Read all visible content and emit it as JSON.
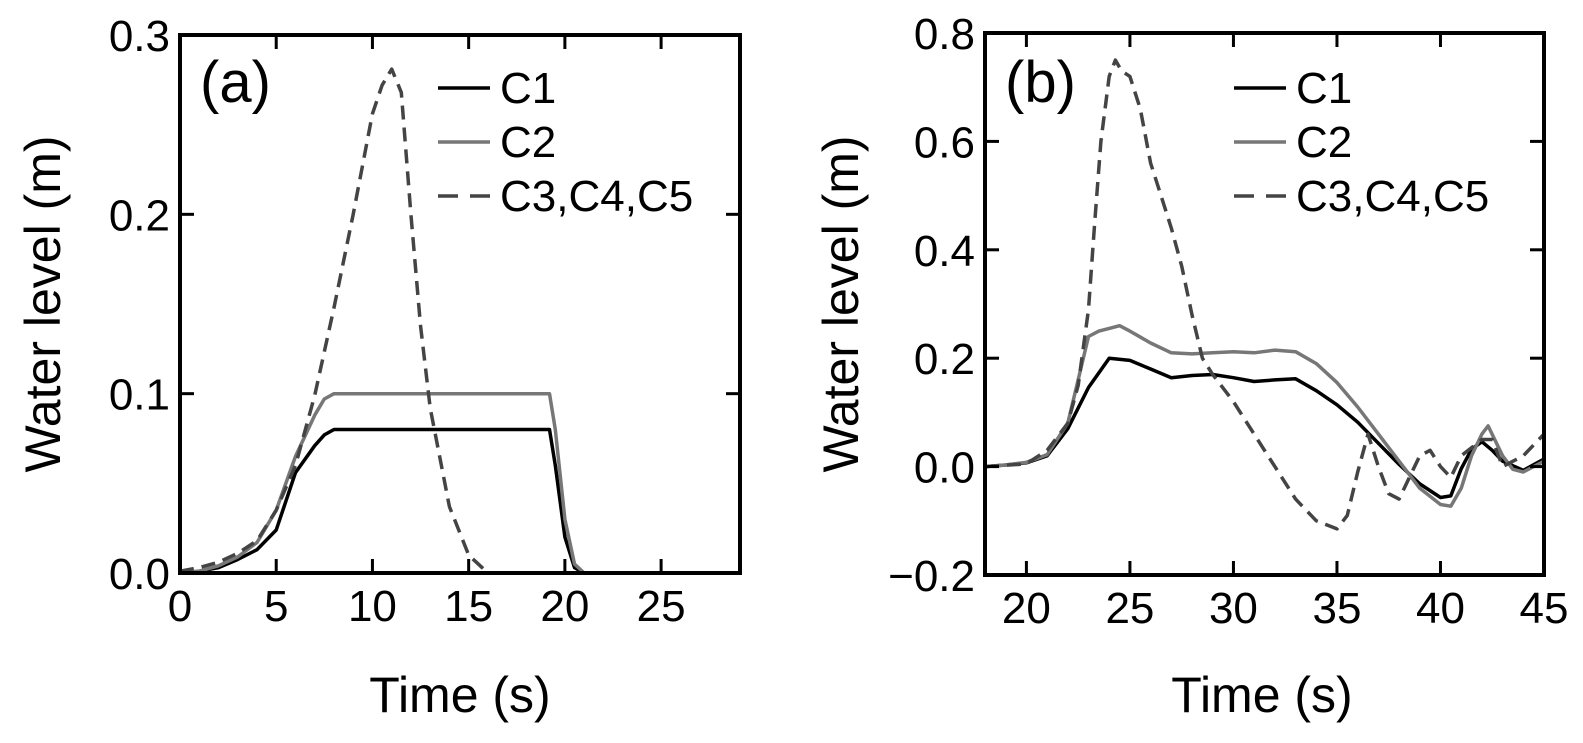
{
  "chart_data": [
    {
      "type": "line",
      "panel_label": "(a)",
      "xlabel": "Time (s)",
      "ylabel": "Water level (m)",
      "xlim": [
        0,
        29.1
      ],
      "ylim": [
        0,
        0.3
      ],
      "xticks": [
        0,
        5,
        10,
        15,
        20,
        25
      ],
      "xtick_labels": [
        "0",
        "5",
        "10",
        "15",
        "20",
        "25"
      ],
      "yticks": [
        0,
        0.1,
        0.2,
        0.3
      ],
      "ytick_labels": [
        "0.0",
        "0.1",
        "0.2",
        "0.3"
      ],
      "grid": false,
      "legend_position": "top-right",
      "series": [
        {
          "name": "C1",
          "color": "#000000",
          "dash": "solid",
          "x": [
            0,
            1,
            2,
            3,
            4,
            5,
            6,
            7,
            7.5,
            8,
            19.2,
            19.5,
            20,
            20.5,
            21
          ],
          "y": [
            0,
            0.001,
            0.003,
            0.0075,
            0.013,
            0.024,
            0.056,
            0.071,
            0.077,
            0.08,
            0.08,
            0.06,
            0.02,
            0.003,
            0
          ]
        },
        {
          "name": "C2",
          "color": "#777777",
          "dash": "solid",
          "x": [
            0,
            1,
            2,
            3,
            4,
            5,
            6,
            7,
            7.5,
            8,
            19.2,
            19.5,
            20,
            20.5,
            21
          ],
          "y": [
            0,
            0.001,
            0.004,
            0.009,
            0.017,
            0.035,
            0.065,
            0.088,
            0.097,
            0.1,
            0.1,
            0.08,
            0.03,
            0.005,
            0
          ]
        },
        {
          "name": "C3,C4,C5",
          "color": "#444444",
          "dash": "dashed",
          "x": [
            0,
            1,
            2,
            3,
            4,
            5,
            6,
            7,
            8,
            9,
            10,
            10.5,
            11,
            11.5,
            12,
            12.5,
            13,
            14,
            15,
            16
          ],
          "y": [
            0.001,
            0.003,
            0.006,
            0.011,
            0.018,
            0.035,
            0.06,
            0.099,
            0.148,
            0.2,
            0.256,
            0.272,
            0.281,
            0.268,
            0.2,
            0.138,
            0.092,
            0.037,
            0.01,
            0
          ]
        }
      ]
    },
    {
      "type": "line",
      "panel_label": "(b)",
      "xlabel": "Time (s)",
      "ylabel": "Water level (m)",
      "xlim": [
        18,
        45
      ],
      "ylim": [
        -0.2,
        0.8
      ],
      "xticks": [
        20,
        25,
        30,
        35,
        40,
        45
      ],
      "xtick_labels": [
        "20",
        "25",
        "30",
        "35",
        "40",
        "45"
      ],
      "yticks": [
        -0.2,
        0,
        0.2,
        0.4,
        0.6,
        0.8
      ],
      "ytick_labels": [
        "−0.2",
        "0.0",
        "0.2",
        "0.4",
        "0.6",
        "0.8"
      ],
      "grid": false,
      "legend_position": "top-right",
      "series": [
        {
          "name": "C1",
          "color": "#000000",
          "dash": "solid",
          "x": [
            18,
            19,
            20,
            21,
            22,
            23,
            24,
            25,
            26,
            27,
            28,
            29,
            30,
            31,
            32,
            33,
            34,
            35,
            36,
            37,
            38,
            39,
            40,
            40.5,
            41,
            41.5,
            42,
            42.5,
            43,
            44,
            45
          ],
          "y": [
            0,
            0.003,
            0.007,
            0.02,
            0.07,
            0.146,
            0.2,
            0.196,
            0.18,
            0.164,
            0.168,
            0.17,
            0.164,
            0.157,
            0.16,
            0.162,
            0.14,
            0.114,
            0.082,
            0.043,
            0.004,
            -0.032,
            -0.057,
            -0.054,
            -0.004,
            0.032,
            0.046,
            0.03,
            0.01,
            -0.007,
            0.014
          ]
        },
        {
          "name": "C2",
          "color": "#777777",
          "dash": "solid",
          "x": [
            18,
            19,
            20,
            21,
            22,
            23,
            23.5,
            24,
            24.5,
            25,
            26,
            27,
            28,
            29,
            30,
            31,
            32,
            33,
            34,
            35,
            36,
            37,
            38,
            39,
            40,
            40.5,
            41,
            41.5,
            42,
            42.3,
            43,
            43.5,
            44,
            45
          ],
          "y": [
            0,
            0.003,
            0.008,
            0.022,
            0.08,
            0.24,
            0.25,
            0.255,
            0.26,
            0.25,
            0.228,
            0.21,
            0.208,
            0.21,
            0.212,
            0.21,
            0.215,
            0.212,
            0.19,
            0.155,
            0.11,
            0.06,
            0.01,
            -0.04,
            -0.07,
            -0.073,
            -0.04,
            0.02,
            0.06,
            0.075,
            0.02,
            -0.005,
            -0.01,
            0.01
          ]
        },
        {
          "name": "C3,C4,C5",
          "color": "#444444",
          "dash": "dashed",
          "x": [
            18,
            20,
            21,
            22,
            22.5,
            23,
            23.3,
            23.6,
            24,
            24.3,
            24.6,
            25,
            25.5,
            26,
            26.5,
            27,
            27.5,
            28,
            28.5,
            29,
            30,
            31,
            32,
            33,
            34,
            35,
            35.5,
            36,
            36.5,
            37,
            37.5,
            38,
            38.5,
            39,
            39.5,
            40,
            40.5,
            41,
            42,
            42.5,
            43,
            44,
            45
          ],
          "y": [
            0,
            0.005,
            0.03,
            0.08,
            0.15,
            0.29,
            0.45,
            0.6,
            0.72,
            0.75,
            0.73,
            0.72,
            0.66,
            0.56,
            0.5,
            0.44,
            0.37,
            0.28,
            0.2,
            0.17,
            0.12,
            0.06,
            0,
            -0.06,
            -0.1,
            -0.115,
            -0.09,
            -0.01,
            0.06,
            0,
            -0.05,
            -0.06,
            -0.02,
            0.02,
            0.03,
            0,
            -0.02,
            0.02,
            0.05,
            0.05,
            0,
            0.02,
            0.06
          ]
        }
      ]
    }
  ]
}
